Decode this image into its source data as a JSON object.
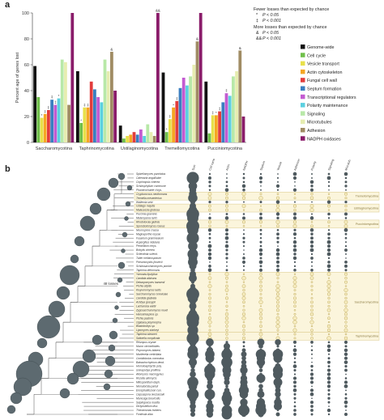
{
  "panel_a_label": "a",
  "panel_b_label": "b",
  "chart_data": [
    {
      "type": "bar",
      "ylabel": "Percent age of genes lost",
      "ylim": [
        0,
        100
      ],
      "yticks": [
        0,
        20,
        40,
        60,
        80,
        100
      ],
      "categories": [
        "Saccharomycotina",
        "Taphrinomycotina",
        "Ustilaginomycotina",
        "Tremellomycotina",
        "Pucciniomycotina"
      ],
      "series": [
        {
          "name": "Genome-wide",
          "color": "#111111",
          "values": [
            59,
            55,
            13,
            54,
            47
          ]
        },
        {
          "name": "Cell cycle",
          "color": "#6fbf4a",
          "values": [
            35,
            15,
            3,
            8,
            7
          ]
        },
        {
          "name": "Vesicle transport",
          "color": "#e8e04a",
          "values": [
            19,
            27,
            5,
            18,
            21
          ]
        },
        {
          "name": "Actin cytoskeleton",
          "color": "#f5a623",
          "values": [
            22,
            27,
            6,
            27,
            21
          ]
        },
        {
          "name": "Fungal cell wall",
          "color": "#e23c3c",
          "values": [
            25,
            47,
            8,
            32,
            24
          ]
        },
        {
          "name": "Septum formation",
          "color": "#3a7fc1",
          "values": [
            33,
            41,
            6,
            42,
            31
          ]
        },
        {
          "name": "Transcriptional regulators",
          "color": "#c35bd1",
          "values": [
            29,
            35,
            10,
            50,
            38
          ]
        },
        {
          "name": "Polarity maintenance",
          "color": "#5bd0e0",
          "values": [
            34,
            31,
            5,
            44,
            36
          ]
        },
        {
          "name": "Signaling",
          "color": "#b8e8a8",
          "values": [
            64,
            64,
            14,
            51,
            51
          ]
        },
        {
          "name": "Microtubules",
          "color": "#e6edb0",
          "values": [
            62,
            55,
            8,
            60,
            55
          ]
        },
        {
          "name": "Adhesion",
          "color": "#a08c64",
          "values": [
            29,
            70,
            5,
            78,
            71
          ]
        },
        {
          "name": "NADPH oxidases",
          "color": "#8a1c6a",
          "values": [
            100,
            40,
            100,
            100,
            20
          ]
        }
      ],
      "significance_legend": {
        "fewer_title": "Fewer losses than expected by chance",
        "fewer": [
          {
            "sym": "*",
            "text": "P < 0.05"
          },
          {
            "sym": "‡",
            "text": "P < 0.001"
          }
        ],
        "more_title": "More losses than expected by chance",
        "more": [
          {
            "sym": "&",
            "text": "P < 0.05"
          },
          {
            "sym": "&&",
            "text": "P < 0.001"
          }
        ]
      },
      "annotations": [
        {
          "category": 0,
          "series": 2,
          "text": "*"
        },
        {
          "category": 0,
          "series": 3,
          "text": "‡"
        },
        {
          "category": 0,
          "series": 4,
          "text": "‡"
        },
        {
          "category": 0,
          "series": 5,
          "text": "‡"
        },
        {
          "category": 0,
          "series": 6,
          "text": "‡"
        },
        {
          "category": 0,
          "series": 7,
          "text": "*"
        },
        {
          "category": 1,
          "series": 1,
          "text": "*"
        },
        {
          "category": 1,
          "series": 2,
          "text": "‡"
        },
        {
          "category": 1,
          "series": 3,
          "text": "‡"
        },
        {
          "category": 1,
          "series": 10,
          "text": "&"
        },
        {
          "category": 2,
          "series": 11,
          "text": "&&"
        },
        {
          "category": 3,
          "series": 1,
          "text": "*"
        },
        {
          "category": 3,
          "series": 2,
          "text": "‡"
        },
        {
          "category": 3,
          "series": 3,
          "text": "*"
        },
        {
          "category": 3,
          "series": 4,
          "text": "‡"
        },
        {
          "category": 3,
          "series": 10,
          "text": "&"
        },
        {
          "category": 4,
          "series": 2,
          "text": "‡"
        },
        {
          "category": 4,
          "series": 3,
          "text": "*"
        },
        {
          "category": 4,
          "series": 4,
          "text": "‡"
        },
        {
          "category": 4,
          "series": 6,
          "text": "‡"
        },
        {
          "category": 4,
          "series": 10,
          "text": "&"
        }
      ]
    }
  ],
  "panel_b": {
    "column_headers": [
      "Sum",
      "Cell cycle",
      "Actin",
      "NADPH",
      "Septum",
      "Vesicle",
      "Adhesion",
      "Polarity",
      "Signaling",
      "Microtub."
    ],
    "species": [
      "Spizellomyces punctatus",
      "Catenaria anguillulae",
      "Coprinopsis cinerea",
      "Schizophyllum commune",
      "Phanerochaete chrys.",
      "Cryptococcus neoformans",
      "Tremella mesenterica",
      "Wallemia sebi",
      "Ustilago maydis",
      "Malassezia globosa",
      "Puccinia graminis",
      "Melampsora larici",
      "Rhodotorula glutinis",
      "Sporobolomyces roseus",
      "Neurospora crassa",
      "Magnaporthe oryzae",
      "Fusarium graminearum",
      "Aspergillus nidulans",
      "Penicillium chrys.",
      "Botrytis cinerea",
      "Sclerotinia sclerot.",
      "Tuber melanosporum",
      "Pneumocystis jirovecii",
      "Schizosaccharomyces pombe",
      "Taphrina deformans",
      "Yarrowia lipolytica",
      "Candida albicans",
      "Debaryomyces hansenii",
      "Pichia stipitis",
      "Kluyveromyces lactis",
      "Saccharomyces cerevisiae",
      "Candida glabrata",
      "Ashbya gossypii",
      "Lachancea waltii",
      "Zygosaccharomyces rouxii",
      "Hanseniaspora sp.",
      "Pichia pastoris",
      "Ogataea polymorpha",
      "Blastobotrys sp.",
      "Lipomyces starkeyi",
      "Taphrina wiesneri",
      "Saitoella complicata",
      "Rhizopus oryzae",
      "Mucor circinelloides",
      "Phycomyces blakesl.",
      "Mortierella verticillata",
      "Conidiobolus coronatus",
      "Batrachochytrium dend.",
      "Homoloaphlyctis poly.",
      "Gonapodya prolifera",
      "Allomyces macrogynus",
      "Rozella allomycis",
      "Mitosporidium daph.",
      "Nematocida parisii",
      "Encephalitozoon cun.",
      "Capsaspora owczarzaki",
      "Monosiga brevicollis",
      "Salpingoeca rosetta",
      "Dictyostelium disc.",
      "Thecamonas trahens",
      "Fonticula alba"
    ],
    "group_labels": [
      "Tremellomycotina",
      "Ustilaginomycotina",
      "Pucciniomycotina",
      "Saccharomycotina",
      "Taphrinomycotina"
    ],
    "node_annotation": "48 losses"
  }
}
